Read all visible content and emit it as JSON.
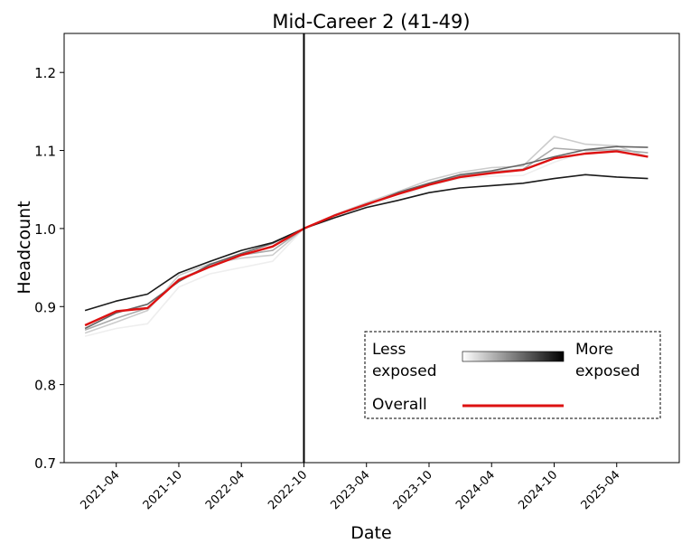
{
  "chart_data": {
    "type": "line",
    "title": "Mid-Career 2 (41-49)",
    "xlabel": "Date",
    "ylabel": "Headcount",
    "ylim": [
      0.7,
      1.25
    ],
    "xlim": [
      "2020-11",
      "2025-10"
    ],
    "yticks": [
      "0.7",
      "0.8",
      "0.9",
      "1.0",
      "1.1",
      "1.2"
    ],
    "xticks": [
      "2021-04",
      "2021-10",
      "2022-04",
      "2022-10",
      "2023-04",
      "2023-10",
      "2024-04",
      "2024-10",
      "2025-04"
    ],
    "vline": "2022-10",
    "legend": {
      "placement": "lower-right",
      "less_label": "Less\nexposed",
      "more_label": "More\nexposed",
      "overall_label": "Overall"
    },
    "x_dates": [
      "2021-01",
      "2021-04",
      "2021-07",
      "2021-10",
      "2022-01",
      "2022-04",
      "2022-07",
      "2022-10",
      "2023-01",
      "2023-04",
      "2023-07",
      "2023-10",
      "2024-01",
      "2024-04",
      "2024-07",
      "2024-10",
      "2025-01",
      "2025-04",
      "2025-07"
    ],
    "series": [
      {
        "exposure": 0.1,
        "color": "#eeeeee",
        "values": [
          0.862,
          0.872,
          0.878,
          0.925,
          0.942,
          0.95,
          0.958,
          1.0,
          1.016,
          1.029,
          1.04,
          1.055,
          1.064,
          1.067,
          1.068,
          1.085,
          1.098,
          1.1,
          1.093
        ]
      },
      {
        "exposure": 0.3,
        "color": "#cccccc",
        "values": [
          0.866,
          0.88,
          0.895,
          0.94,
          0.955,
          0.962,
          0.966,
          1.0,
          1.018,
          1.033,
          1.047,
          1.062,
          1.072,
          1.078,
          1.08,
          1.118,
          1.108,
          1.106,
          1.092
        ]
      },
      {
        "exposure": 0.5,
        "color": "#aaaaaa",
        "values": [
          0.87,
          0.885,
          0.898,
          0.935,
          0.952,
          0.966,
          0.972,
          1.0,
          1.017,
          1.031,
          1.045,
          1.058,
          1.067,
          1.073,
          1.076,
          1.103,
          1.1,
          1.101,
          1.097
        ]
      },
      {
        "exposure": 0.7,
        "color": "#666666",
        "values": [
          0.872,
          0.892,
          0.903,
          0.932,
          0.954,
          0.968,
          0.981,
          1.0,
          1.017,
          1.03,
          1.046,
          1.058,
          1.069,
          1.074,
          1.082,
          1.092,
          1.101,
          1.105,
          1.104
        ]
      },
      {
        "exposure": 1.0,
        "color": "#1a1a1a",
        "values": [
          0.895,
          0.907,
          0.916,
          0.943,
          0.958,
          0.972,
          0.982,
          1.0,
          1.014,
          1.027,
          1.036,
          1.046,
          1.052,
          1.055,
          1.058,
          1.064,
          1.069,
          1.066,
          1.064
        ]
      },
      {
        "name": "Overall",
        "color": "#dd1111",
        "values": [
          0.876,
          0.894,
          0.898,
          0.934,
          0.951,
          0.966,
          0.977,
          1.0,
          1.017,
          1.031,
          1.044,
          1.056,
          1.066,
          1.071,
          1.075,
          1.09,
          1.096,
          1.099,
          1.092
        ]
      }
    ]
  }
}
